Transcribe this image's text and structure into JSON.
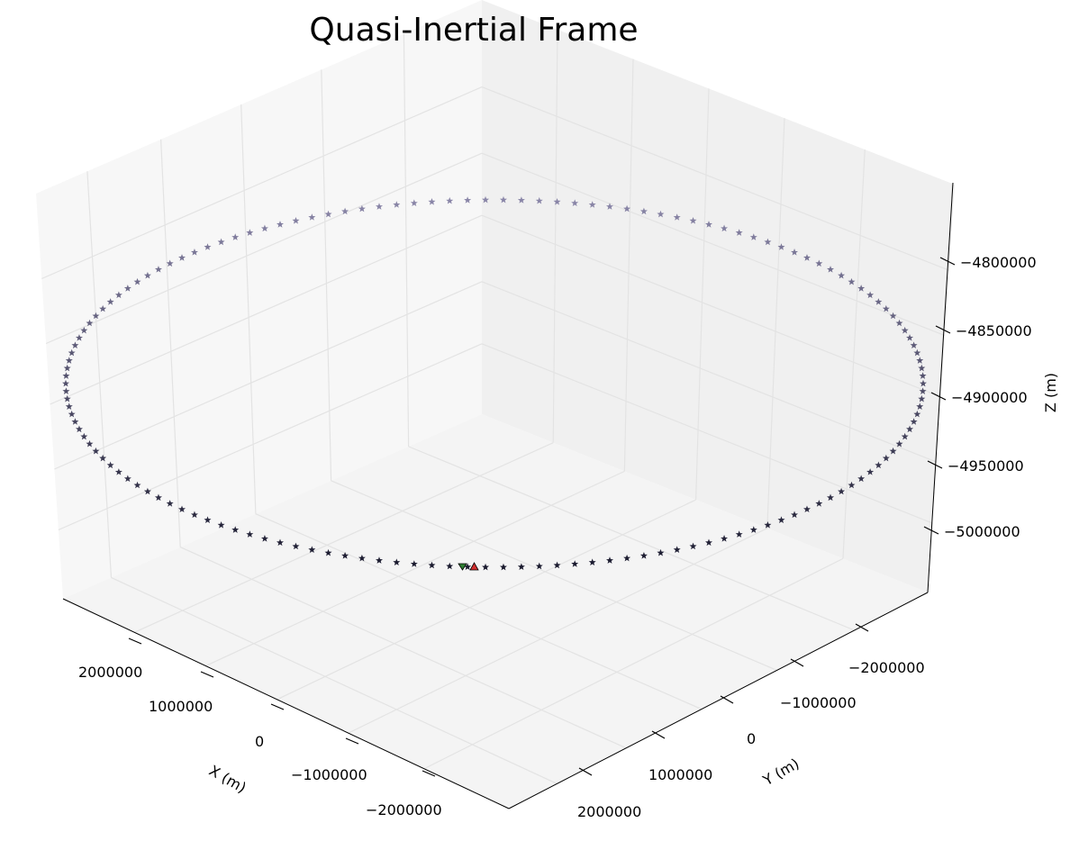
{
  "chart_data": {
    "type": "scatter3d",
    "title": "Quasi-Inertial Frame",
    "xlabel": "X (m)",
    "ylabel": "Y (m)",
    "zlabel": "Z (m)",
    "x_ticks": [
      {
        "value": 2000000,
        "label": "2000000"
      },
      {
        "value": 1000000,
        "label": "1000000"
      },
      {
        "value": 0,
        "label": "0"
      },
      {
        "value": -1000000,
        "label": "−1000000"
      },
      {
        "value": -2000000,
        "label": "−2000000"
      }
    ],
    "y_ticks": [
      {
        "value": -2000000,
        "label": "−2000000"
      },
      {
        "value": -1000000,
        "label": "−1000000"
      },
      {
        "value": 0,
        "label": "0"
      },
      {
        "value": 1000000,
        "label": "1000000"
      },
      {
        "value": 2000000,
        "label": "2000000"
      }
    ],
    "z_ticks": [
      {
        "value": -4800000,
        "label": "−4800000"
      },
      {
        "value": -4850000,
        "label": "−4850000"
      },
      {
        "value": -4900000,
        "label": "−4900000"
      },
      {
        "value": -4950000,
        "label": "−4950000"
      },
      {
        "value": -5000000,
        "label": "−5000000"
      }
    ],
    "xlim": [
      -2900000,
      2900000
    ],
    "ylim": [
      -2900000,
      2900000
    ],
    "zlim": [
      -5040000,
      -4760000
    ],
    "grid": true,
    "orbit": {
      "center_x": 0,
      "center_y": 0,
      "radius": 3200000,
      "z_values": [
        -4900000,
        -5030000,
        -4900000,
        -4770000
      ],
      "z_at_x_positive": -4900000,
      "z_at_y_positive": -5030000,
      "z_at_x_negative": -4900000,
      "z_at_y_negative": -4770000,
      "num_points": 150,
      "marker": "star",
      "color_near": "#1a1a2e",
      "color_far": "#8a86a8"
    },
    "start_marker": {
      "x": 80000,
      "y": 3200000,
      "z": -5030000,
      "marker": "triangle-down",
      "color": "#2e7d32"
    },
    "end_marker": {
      "x": -80000,
      "y": 3200000,
      "z": -5030000,
      "marker": "triangle-up",
      "color": "#d32f2f"
    }
  }
}
